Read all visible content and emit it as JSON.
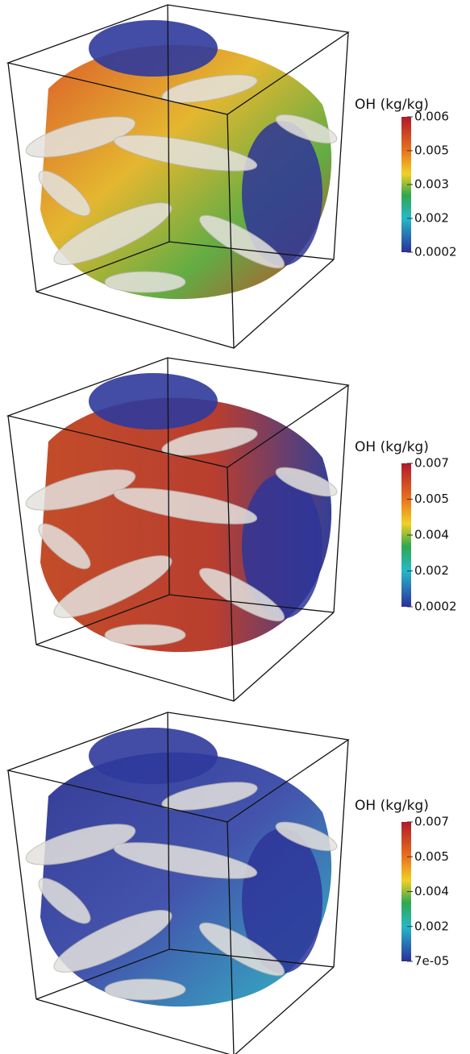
{
  "panels": [
    {
      "colorbar": {
        "title": "OH (kg/kg)",
        "ticks": [
          "0.006",
          "0.005",
          "0.003",
          "0.002",
          "0.0002"
        ]
      }
    },
    {
      "colorbar": {
        "title": "OH (kg/kg)",
        "ticks": [
          "0.007",
          "0.005",
          "0.004",
          "0.002",
          "0.0002"
        ]
      }
    },
    {
      "colorbar": {
        "title": "OH (kg/kg)",
        "ticks": [
          "0.007",
          "0.005",
          "0.004",
          "0.002",
          "7e-05"
        ]
      }
    }
  ]
}
